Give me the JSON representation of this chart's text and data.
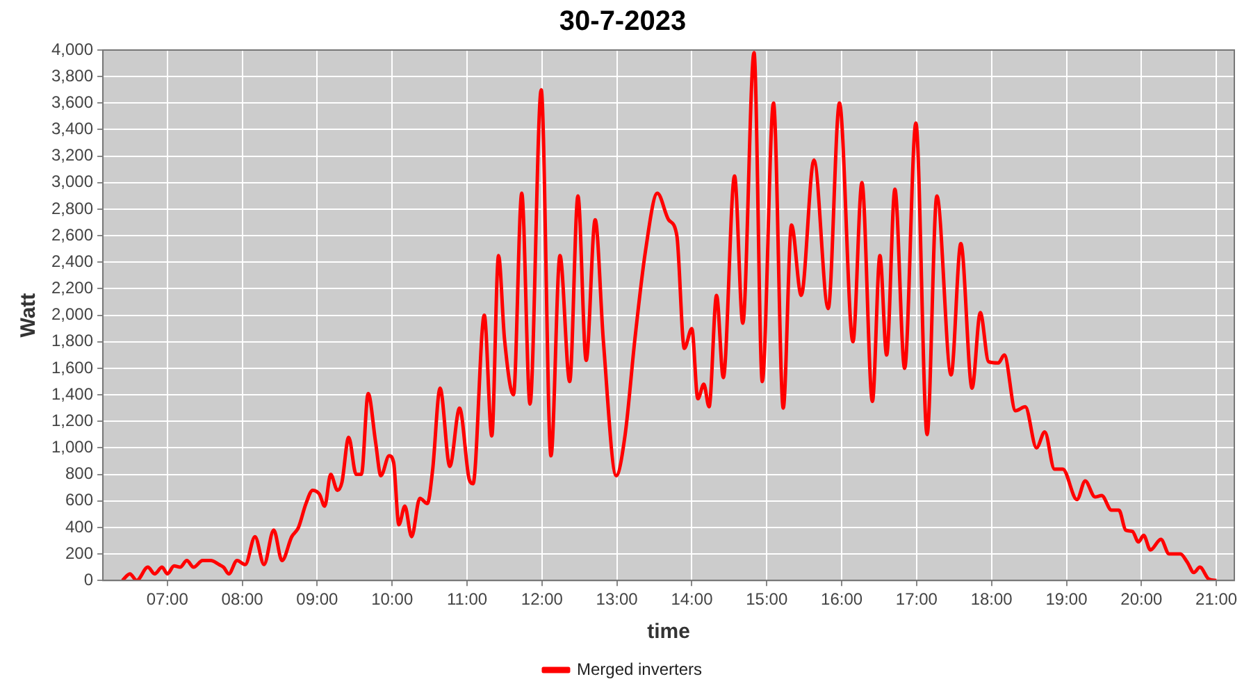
{
  "chart_data": {
    "type": "line",
    "title": "30-7-2023",
    "xlabel": "time",
    "ylabel": "Watt",
    "xlim": [
      6.14,
      21.24
    ],
    "xticks": [
      {
        "value": 7,
        "label": "07:00"
      },
      {
        "value": 8,
        "label": "08:00"
      },
      {
        "value": 9,
        "label": "09:00"
      },
      {
        "value": 10,
        "label": "10:00"
      },
      {
        "value": 11,
        "label": "11:00"
      },
      {
        "value": 12,
        "label": "12:00"
      },
      {
        "value": 13,
        "label": "13:00"
      },
      {
        "value": 14,
        "label": "14:00"
      },
      {
        "value": 15,
        "label": "15:00"
      },
      {
        "value": 16,
        "label": "16:00"
      },
      {
        "value": 17,
        "label": "17:00"
      },
      {
        "value": 18,
        "label": "18:00"
      },
      {
        "value": 19,
        "label": "19:00"
      },
      {
        "value": 20,
        "label": "20:00"
      },
      {
        "value": 21,
        "label": "21:00"
      }
    ],
    "ylim": [
      0,
      4000
    ],
    "yticks": [
      0,
      200,
      400,
      600,
      800,
      {
        "value": 1000,
        "label": "1,000"
      },
      {
        "value": 1200,
        "label": "1,200"
      },
      {
        "value": 1400,
        "label": "1,400"
      },
      {
        "value": 1600,
        "label": "1,600"
      },
      {
        "value": 1800,
        "label": "1,800"
      },
      {
        "value": 2000,
        "label": "2,000"
      },
      {
        "value": 2200,
        "label": "2,200"
      },
      {
        "value": 2400,
        "label": "2,400"
      },
      {
        "value": 2600,
        "label": "2,600"
      },
      {
        "value": 2800,
        "label": "2,800"
      },
      {
        "value": 3000,
        "label": "3,000"
      },
      {
        "value": 3200,
        "label": "3,200"
      },
      {
        "value": 3400,
        "label": "3,400"
      },
      {
        "value": 3600,
        "label": "3,600"
      },
      {
        "value": 3800,
        "label": "3,800"
      },
      {
        "value": 4000,
        "label": "4,000"
      }
    ],
    "grid": true,
    "legend": "bottom",
    "marker": "none",
    "line_style": "solid",
    "series": [
      {
        "name": "Merged inverters",
        "color": "#ff0000",
        "x": [
          6.4,
          6.5,
          6.59,
          6.74,
          6.83,
          6.93,
          7.0,
          7.09,
          7.17,
          7.26,
          7.35,
          7.47,
          7.58,
          7.69,
          7.75,
          7.82,
          7.93,
          8.04,
          8.17,
          8.29,
          8.42,
          8.53,
          8.66,
          8.75,
          8.85,
          8.94,
          9.03,
          9.1,
          9.18,
          9.27,
          9.33,
          9.42,
          9.52,
          9.59,
          9.68,
          9.78,
          9.85,
          9.96,
          10.02,
          10.09,
          10.17,
          10.26,
          10.37,
          10.47,
          10.54,
          10.64,
          10.77,
          10.9,
          11.03,
          11.08,
          11.23,
          11.33,
          11.42,
          11.5,
          11.62,
          11.73,
          11.84,
          11.99,
          12.12,
          12.24,
          12.37,
          12.48,
          12.59,
          12.71,
          12.82,
          12.99,
          13.11,
          13.24,
          13.38,
          13.54,
          13.69,
          13.8,
          13.9,
          14.0,
          14.08,
          14.16,
          14.23,
          14.33,
          14.42,
          14.57,
          14.68,
          14.83,
          14.94,
          15.09,
          15.22,
          15.33,
          15.46,
          15.63,
          15.82,
          15.97,
          16.15,
          16.27,
          16.41,
          16.51,
          16.6,
          16.71,
          16.84,
          16.99,
          17.14,
          17.27,
          17.46,
          17.59,
          17.74,
          17.85,
          17.96,
          18.09,
          18.17,
          18.32,
          18.45,
          18.6,
          18.71,
          18.84,
          18.95,
          19.14,
          19.25,
          19.38,
          19.47,
          19.6,
          19.7,
          19.79,
          19.88,
          19.96,
          20.03,
          20.12,
          20.26,
          20.37,
          20.52,
          20.61,
          20.7,
          20.78,
          20.9,
          21.0
        ],
        "values": [
          0,
          50,
          0,
          100,
          50,
          100,
          50,
          110,
          100,
          150,
          100,
          150,
          150,
          120,
          100,
          50,
          150,
          120,
          330,
          120,
          380,
          150,
          330,
          400,
          580,
          680,
          650,
          560,
          800,
          680,
          740,
          1080,
          800,
          800,
          1410,
          1040,
          790,
          940,
          890,
          420,
          560,
          330,
          620,
          580,
          830,
          1450,
          860,
          1300,
          760,
          730,
          2000,
          1090,
          2450,
          1820,
          1400,
          2920,
          1330,
          3700,
          940,
          2450,
          1500,
          2900,
          1660,
          2720,
          1800,
          790,
          1100,
          1820,
          2480,
          2920,
          2720,
          2600,
          1750,
          1900,
          1370,
          1480,
          1310,
          2150,
          1530,
          3050,
          1940,
          3980,
          1500,
          3600,
          1300,
          2680,
          2150,
          3170,
          2050,
          3600,
          1800,
          3000,
          1350,
          2450,
          1700,
          2950,
          1600,
          3450,
          1100,
          2900,
          1550,
          2540,
          1450,
          2020,
          1650,
          1640,
          1700,
          1280,
          1310,
          1000,
          1120,
          840,
          840,
          610,
          750,
          630,
          640,
          530,
          530,
          380,
          370,
          290,
          340,
          230,
          310,
          200,
          200,
          140,
          60,
          100,
          10,
          0
        ]
      }
    ]
  }
}
